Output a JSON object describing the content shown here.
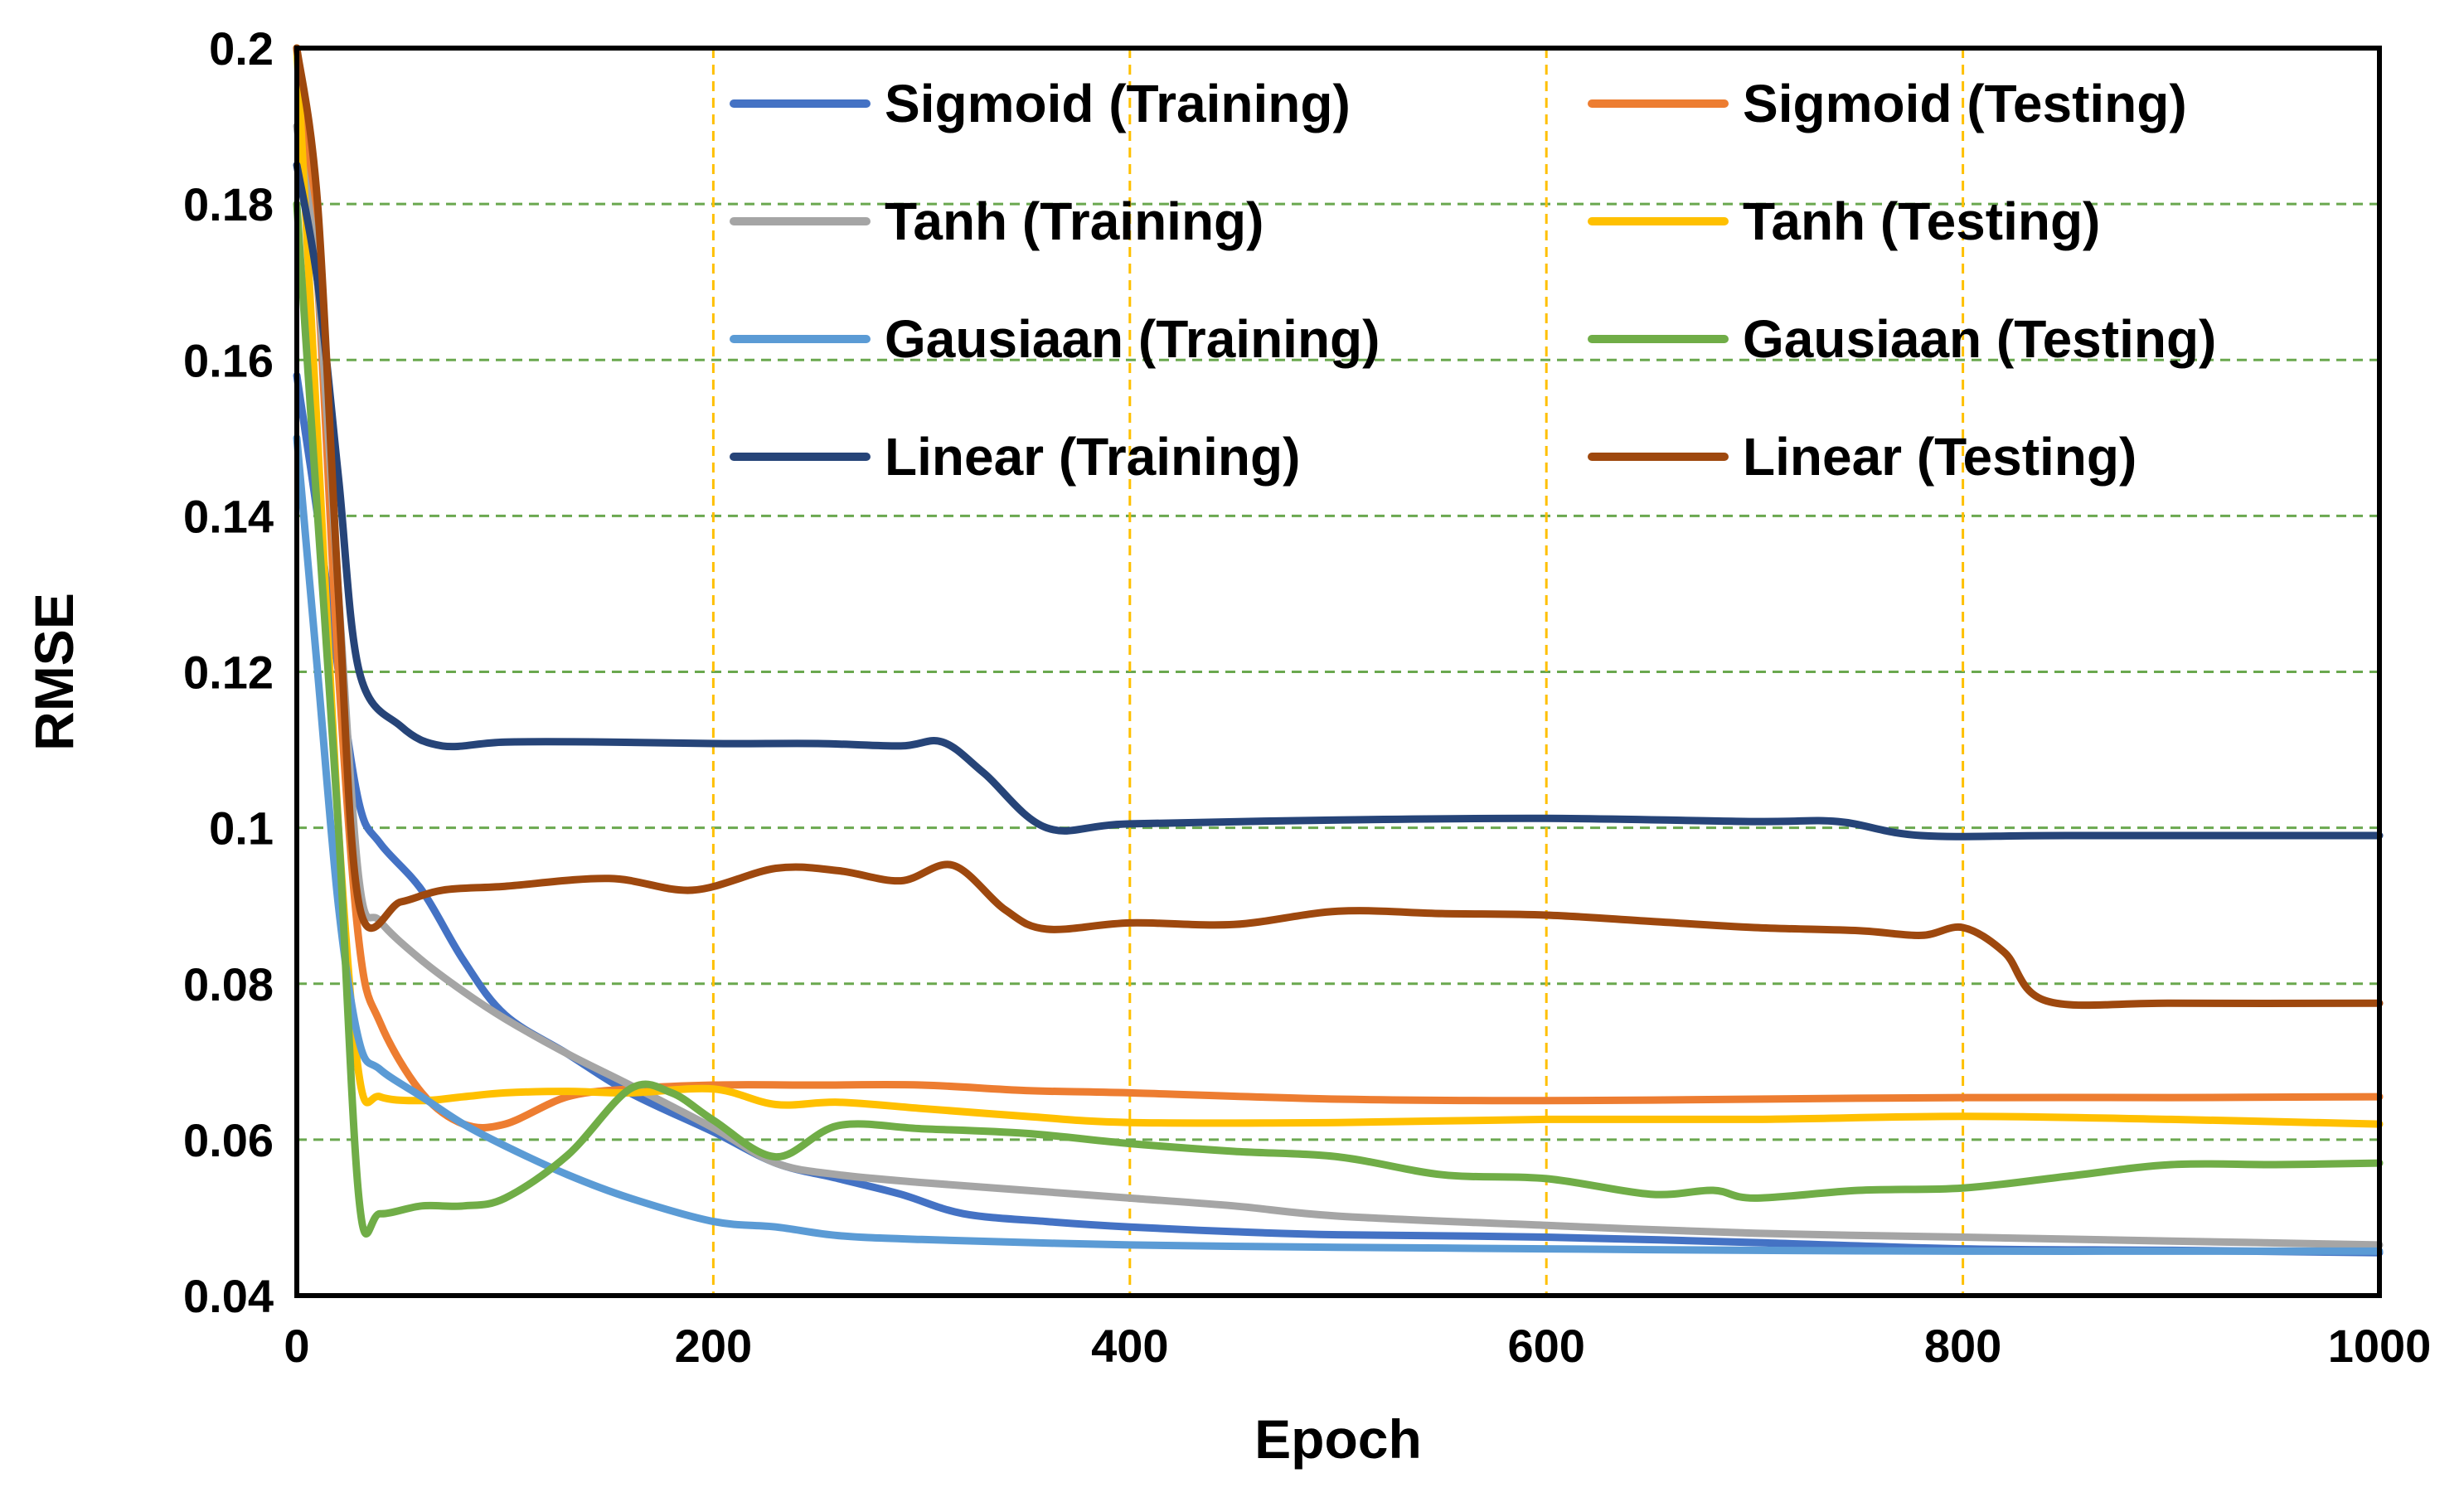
{
  "chart_data": {
    "type": "line",
    "title": "",
    "xlabel": "Epoch",
    "ylabel": "RMSE",
    "xlim": [
      0,
      1000
    ],
    "ylim": [
      0.04,
      0.2
    ],
    "x_ticks": [
      0,
      200,
      400,
      600,
      800,
      1000
    ],
    "x_tick_labels": [
      "0",
      "200",
      "400",
      "600",
      "800",
      "1000"
    ],
    "y_ticks": [
      0.04,
      0.06,
      0.08,
      0.1,
      0.12,
      0.14,
      0.16,
      0.18,
      0.2
    ],
    "y_tick_labels": [
      "0.04",
      "0.06",
      "0.08",
      "0.1",
      "0.12",
      "0.14",
      "0.16",
      "0.18",
      "0.2"
    ],
    "grid": {
      "horizontal": true,
      "vertical": true,
      "horizontal_color": "#6aa84f",
      "vertical_color": "#ffc000"
    },
    "legend_position": "top-right",
    "series": [
      {
        "name": "Sigmoid (Training)",
        "color": "#4472c4",
        "points": [
          [
            0,
            0.158
          ],
          [
            10,
            0.14
          ],
          [
            20,
            0.12
          ],
          [
            30,
            0.103
          ],
          [
            40,
            0.098
          ],
          [
            60,
            0.092
          ],
          [
            80,
            0.083
          ],
          [
            100,
            0.076
          ],
          [
            130,
            0.071
          ],
          [
            160,
            0.066
          ],
          [
            200,
            0.061
          ],
          [
            230,
            0.057
          ],
          [
            260,
            0.055
          ],
          [
            290,
            0.053
          ],
          [
            320,
            0.0505
          ],
          [
            360,
            0.0495
          ],
          [
            400,
            0.0488
          ],
          [
            450,
            0.0482
          ],
          [
            500,
            0.0478
          ],
          [
            600,
            0.0475
          ],
          [
            700,
            0.0468
          ],
          [
            800,
            0.046
          ],
          [
            900,
            0.0458
          ],
          [
            1000,
            0.0455
          ]
        ]
      },
      {
        "name": "Sigmoid (Testing)",
        "color": "#ed7d31",
        "points": [
          [
            0,
            0.2
          ],
          [
            10,
            0.17
          ],
          [
            20,
            0.12
          ],
          [
            30,
            0.085
          ],
          [
            40,
            0.075
          ],
          [
            60,
            0.066
          ],
          [
            80,
            0.062
          ],
          [
            100,
            0.062
          ],
          [
            130,
            0.0655
          ],
          [
            160,
            0.0665
          ],
          [
            200,
            0.067
          ],
          [
            250,
            0.067
          ],
          [
            300,
            0.067
          ],
          [
            350,
            0.0663
          ],
          [
            400,
            0.066
          ],
          [
            500,
            0.0652
          ],
          [
            600,
            0.065
          ],
          [
            700,
            0.0652
          ],
          [
            800,
            0.0654
          ],
          [
            900,
            0.0654
          ],
          [
            1000,
            0.0655
          ]
        ]
      },
      {
        "name": "Tanh (Training)",
        "color": "#a5a5a5",
        "points": [
          [
            0,
            0.19
          ],
          [
            10,
            0.17
          ],
          [
            20,
            0.13
          ],
          [
            30,
            0.093
          ],
          [
            40,
            0.088
          ],
          [
            60,
            0.083
          ],
          [
            80,
            0.079
          ],
          [
            100,
            0.0755
          ],
          [
            130,
            0.071
          ],
          [
            160,
            0.067
          ],
          [
            200,
            0.0615
          ],
          [
            230,
            0.057
          ],
          [
            260,
            0.0555
          ],
          [
            300,
            0.0545
          ],
          [
            350,
            0.0535
          ],
          [
            400,
            0.0525
          ],
          [
            450,
            0.0515
          ],
          [
            500,
            0.0502
          ],
          [
            600,
            0.049
          ],
          [
            700,
            0.048
          ],
          [
            800,
            0.0475
          ],
          [
            900,
            0.047
          ],
          [
            1000,
            0.0465
          ]
        ]
      },
      {
        "name": "Tanh (Testing)",
        "color": "#ffc000",
        "points": [
          [
            0,
            0.2
          ],
          [
            10,
            0.15
          ],
          [
            20,
            0.1
          ],
          [
            30,
            0.068
          ],
          [
            40,
            0.0655
          ],
          [
            60,
            0.065
          ],
          [
            80,
            0.0655
          ],
          [
            100,
            0.066
          ],
          [
            130,
            0.0662
          ],
          [
            160,
            0.066
          ],
          [
            200,
            0.0665
          ],
          [
            230,
            0.0645
          ],
          [
            260,
            0.0648
          ],
          [
            300,
            0.064
          ],
          [
            350,
            0.063
          ],
          [
            400,
            0.0622
          ],
          [
            500,
            0.0622
          ],
          [
            600,
            0.0626
          ],
          [
            700,
            0.0626
          ],
          [
            800,
            0.063
          ],
          [
            900,
            0.0626
          ],
          [
            1000,
            0.062
          ]
        ]
      },
      {
        "name": "Gausiaan (Training)",
        "color": "#5b9bd5",
        "points": [
          [
            0,
            0.15
          ],
          [
            10,
            0.12
          ],
          [
            20,
            0.09
          ],
          [
            30,
            0.0725
          ],
          [
            40,
            0.069
          ],
          [
            60,
            0.0655
          ],
          [
            80,
            0.062
          ],
          [
            100,
            0.0592
          ],
          [
            130,
            0.0555
          ],
          [
            160,
            0.0525
          ],
          [
            200,
            0.0495
          ],
          [
            230,
            0.0488
          ],
          [
            260,
            0.0477
          ],
          [
            300,
            0.0472
          ],
          [
            400,
            0.0465
          ],
          [
            500,
            0.0462
          ],
          [
            600,
            0.046
          ],
          [
            700,
            0.0458
          ],
          [
            800,
            0.0457
          ],
          [
            900,
            0.0457
          ],
          [
            1000,
            0.0457
          ]
        ]
      },
      {
        "name": "Gausiaan (Testing)",
        "color": "#70ad47",
        "points": [
          [
            0,
            0.18
          ],
          [
            10,
            0.14
          ],
          [
            20,
            0.1
          ],
          [
            30,
            0.052
          ],
          [
            40,
            0.0505
          ],
          [
            60,
            0.0515
          ],
          [
            80,
            0.0515
          ],
          [
            100,
            0.0525
          ],
          [
            130,
            0.058
          ],
          [
            160,
            0.0665
          ],
          [
            180,
            0.066
          ],
          [
            200,
            0.0625
          ],
          [
            230,
            0.0578
          ],
          [
            260,
            0.0618
          ],
          [
            300,
            0.0614
          ],
          [
            350,
            0.0608
          ],
          [
            400,
            0.0595
          ],
          [
            450,
            0.0585
          ],
          [
            500,
            0.0578
          ],
          [
            550,
            0.0555
          ],
          [
            600,
            0.055
          ],
          [
            650,
            0.053
          ],
          [
            680,
            0.0535
          ],
          [
            700,
            0.0525
          ],
          [
            750,
            0.0535
          ],
          [
            800,
            0.0538
          ],
          [
            850,
            0.0553
          ],
          [
            900,
            0.0568
          ],
          [
            950,
            0.0568
          ],
          [
            1000,
            0.057
          ]
        ]
      },
      {
        "name": "Linear (Training)",
        "color": "#264478",
        "points": [
          [
            0,
            0.185
          ],
          [
            10,
            0.17
          ],
          [
            20,
            0.145
          ],
          [
            30,
            0.12
          ],
          [
            50,
            0.113
          ],
          [
            70,
            0.1105
          ],
          [
            100,
            0.111
          ],
          [
            150,
            0.111
          ],
          [
            200,
            0.1108
          ],
          [
            250,
            0.1108
          ],
          [
            290,
            0.1105
          ],
          [
            310,
            0.111
          ],
          [
            330,
            0.107
          ],
          [
            360,
            0.1
          ],
          [
            400,
            0.1005
          ],
          [
            500,
            0.101
          ],
          [
            600,
            0.1012
          ],
          [
            700,
            0.1008
          ],
          [
            740,
            0.1008
          ],
          [
            780,
            0.099
          ],
          [
            850,
            0.099
          ],
          [
            1000,
            0.099
          ]
        ]
      },
      {
        "name": "Linear (Testing)",
        "color": "#9e480e",
        "points": [
          [
            0,
            0.2
          ],
          [
            10,
            0.18
          ],
          [
            20,
            0.13
          ],
          [
            30,
            0.09
          ],
          [
            50,
            0.0905
          ],
          [
            70,
            0.092
          ],
          [
            100,
            0.0925
          ],
          [
            150,
            0.0935
          ],
          [
            190,
            0.092
          ],
          [
            230,
            0.0948
          ],
          [
            260,
            0.0945
          ],
          [
            290,
            0.0932
          ],
          [
            315,
            0.0952
          ],
          [
            340,
            0.0895
          ],
          [
            360,
            0.087
          ],
          [
            400,
            0.0878
          ],
          [
            450,
            0.0876
          ],
          [
            500,
            0.0893
          ],
          [
            550,
            0.089
          ],
          [
            600,
            0.0888
          ],
          [
            650,
            0.088
          ],
          [
            700,
            0.0872
          ],
          [
            750,
            0.0868
          ],
          [
            780,
            0.0862
          ],
          [
            800,
            0.0872
          ],
          [
            820,
            0.084
          ],
          [
            840,
            0.0778
          ],
          [
            900,
            0.0775
          ],
          [
            1000,
            0.0775
          ]
        ]
      }
    ]
  }
}
